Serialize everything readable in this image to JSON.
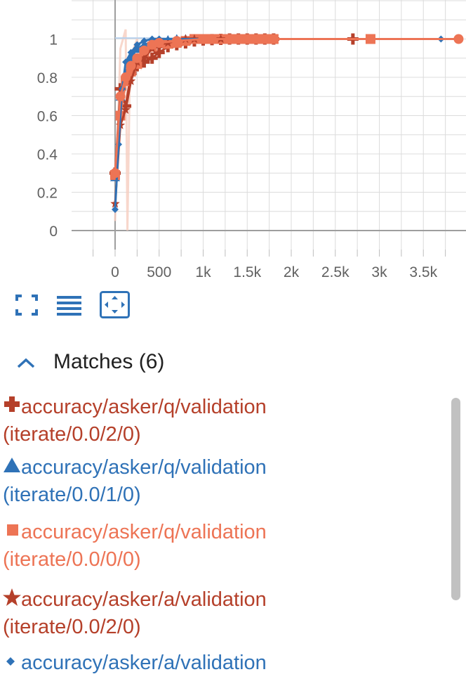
{
  "chart_data": {
    "type": "line",
    "x_ticks": [
      0,
      500,
      1000,
      1500,
      2000,
      2500,
      3000,
      3500
    ],
    "x_tick_labels": [
      "0",
      "500",
      "1k",
      "1.5k",
      "2k",
      "2.5k",
      "3k",
      "3.5k"
    ],
    "y_ticks": [
      0,
      0.2,
      0.4,
      0.6,
      0.8,
      1
    ],
    "y_tick_labels": [
      "0",
      "0.2",
      "0.4",
      "0.6",
      "0.8",
      "1"
    ],
    "xlim": [
      -500,
      4000
    ],
    "ylim": [
      -0.1,
      1.2
    ],
    "grid": true,
    "series": [
      {
        "name": "accuracy/asker/q/validation (iterate/0.0/2/0)",
        "color": "#b5402a",
        "marker": "plus",
        "x": [
          0,
          60,
          120,
          180,
          250,
          330,
          420,
          500,
          600,
          700,
          800,
          900,
          1000,
          1100,
          1200,
          1300,
          1400,
          1500,
          1600,
          1700,
          1800,
          2700
        ],
        "y": [
          0.3,
          0.74,
          0.65,
          0.82,
          0.86,
          0.88,
          0.9,
          0.93,
          0.96,
          0.97,
          0.98,
          0.99,
          0.995,
          0.997,
          0.998,
          1,
          1,
          1,
          1,
          1,
          1,
          1
        ]
      },
      {
        "name": "accuracy/asker/q/validation (iterate/0.0/1/0)",
        "color": "#2f72b7",
        "marker": "triangle",
        "x": [
          0,
          60,
          120,
          180,
          250,
          330,
          420,
          500,
          600,
          700,
          800,
          900,
          1000,
          1100,
          1200,
          1300,
          1400,
          1500,
          1600,
          1700,
          1800
        ],
        "y": [
          0.28,
          0.7,
          0.82,
          0.9,
          0.95,
          0.97,
          0.985,
          0.99,
          0.995,
          1,
          1,
          1,
          1,
          1,
          1,
          1,
          1,
          1,
          1,
          1,
          1
        ]
      },
      {
        "name": "accuracy/asker/q/validation (iterate/0.0/0/0)",
        "color": "#ed7455",
        "marker": "square",
        "x": [
          0,
          60,
          120,
          180,
          250,
          330,
          420,
          500,
          600,
          700,
          800,
          900,
          1000,
          1100,
          1200,
          1300,
          1400,
          1500,
          1600,
          1700,
          1800,
          2900
        ],
        "y": [
          0.29,
          0.6,
          0.78,
          0.83,
          0.87,
          0.93,
          0.96,
          0.98,
          0.975,
          0.98,
          0.99,
          1,
          1,
          1,
          1,
          1,
          1,
          1,
          1,
          1,
          1,
          1
        ]
      },
      {
        "name": "accuracy/asker/a/validation (iterate/0.0/2/0)",
        "color": "#b5402a",
        "marker": "star",
        "x": [
          0,
          60,
          120,
          180,
          250,
          330,
          420,
          500,
          600,
          700,
          800,
          900,
          1000,
          1200,
          1500,
          1800
        ],
        "y": [
          0.14,
          0.55,
          0.63,
          0.78,
          0.88,
          0.9,
          0.95,
          0.97,
          0.98,
          0.99,
          1,
          1,
          1,
          1,
          1,
          1
        ]
      },
      {
        "name": "accuracy/asker/a/validation",
        "color": "#2f72b7",
        "marker": "diamond",
        "x": [
          0,
          40,
          80,
          120,
          180,
          250,
          330,
          420,
          500,
          700,
          1000,
          1500,
          1800,
          3700
        ],
        "y": [
          0.11,
          0.45,
          0.74,
          0.88,
          0.93,
          0.97,
          0.99,
          1,
          1,
          1,
          1,
          1,
          1,
          1
        ]
      },
      {
        "name": "",
        "color": "#ed7455",
        "marker": "circle",
        "x": [
          0,
          60,
          120,
          180,
          250,
          330,
          420,
          500,
          700,
          1000,
          1500,
          1800,
          3900
        ],
        "y": [
          0.3,
          0.7,
          0.8,
          0.86,
          0.9,
          0.94,
          0.97,
          0.98,
          0.99,
          1,
          1,
          1,
          1
        ]
      }
    ]
  },
  "toolbar": {
    "fullscreen_icon": "fullscreen-icon",
    "list_icon": "list-icon",
    "fit_icon": "fit-domain-icon"
  },
  "matches": {
    "title": "Matches (6)",
    "toggle_icon": "chevron-up-icon",
    "items": [
      {
        "line1": "accuracy/asker/q/validation",
        "line2": "(iterate/0.0/2/0)",
        "color": "#b5402a",
        "marker": "plus-icon"
      },
      {
        "line1": "accuracy/asker/q/validation",
        "line2": "(iterate/0.0/1/0)",
        "color": "#2f72b7",
        "marker": "triangle-icon"
      },
      {
        "line1": "accuracy/asker/q/validation",
        "line2": "(iterate/0.0/0/0)",
        "color": "#ed7455",
        "marker": "square-icon"
      },
      {
        "line1": "accuracy/asker/a/validation",
        "line2": "(iterate/0.0/2/0)",
        "color": "#b5402a",
        "marker": "star-icon"
      },
      {
        "line1": "accuracy/asker/a/validation",
        "line2": "",
        "color": "#2f72b7",
        "marker": "diamond-icon"
      }
    ]
  }
}
